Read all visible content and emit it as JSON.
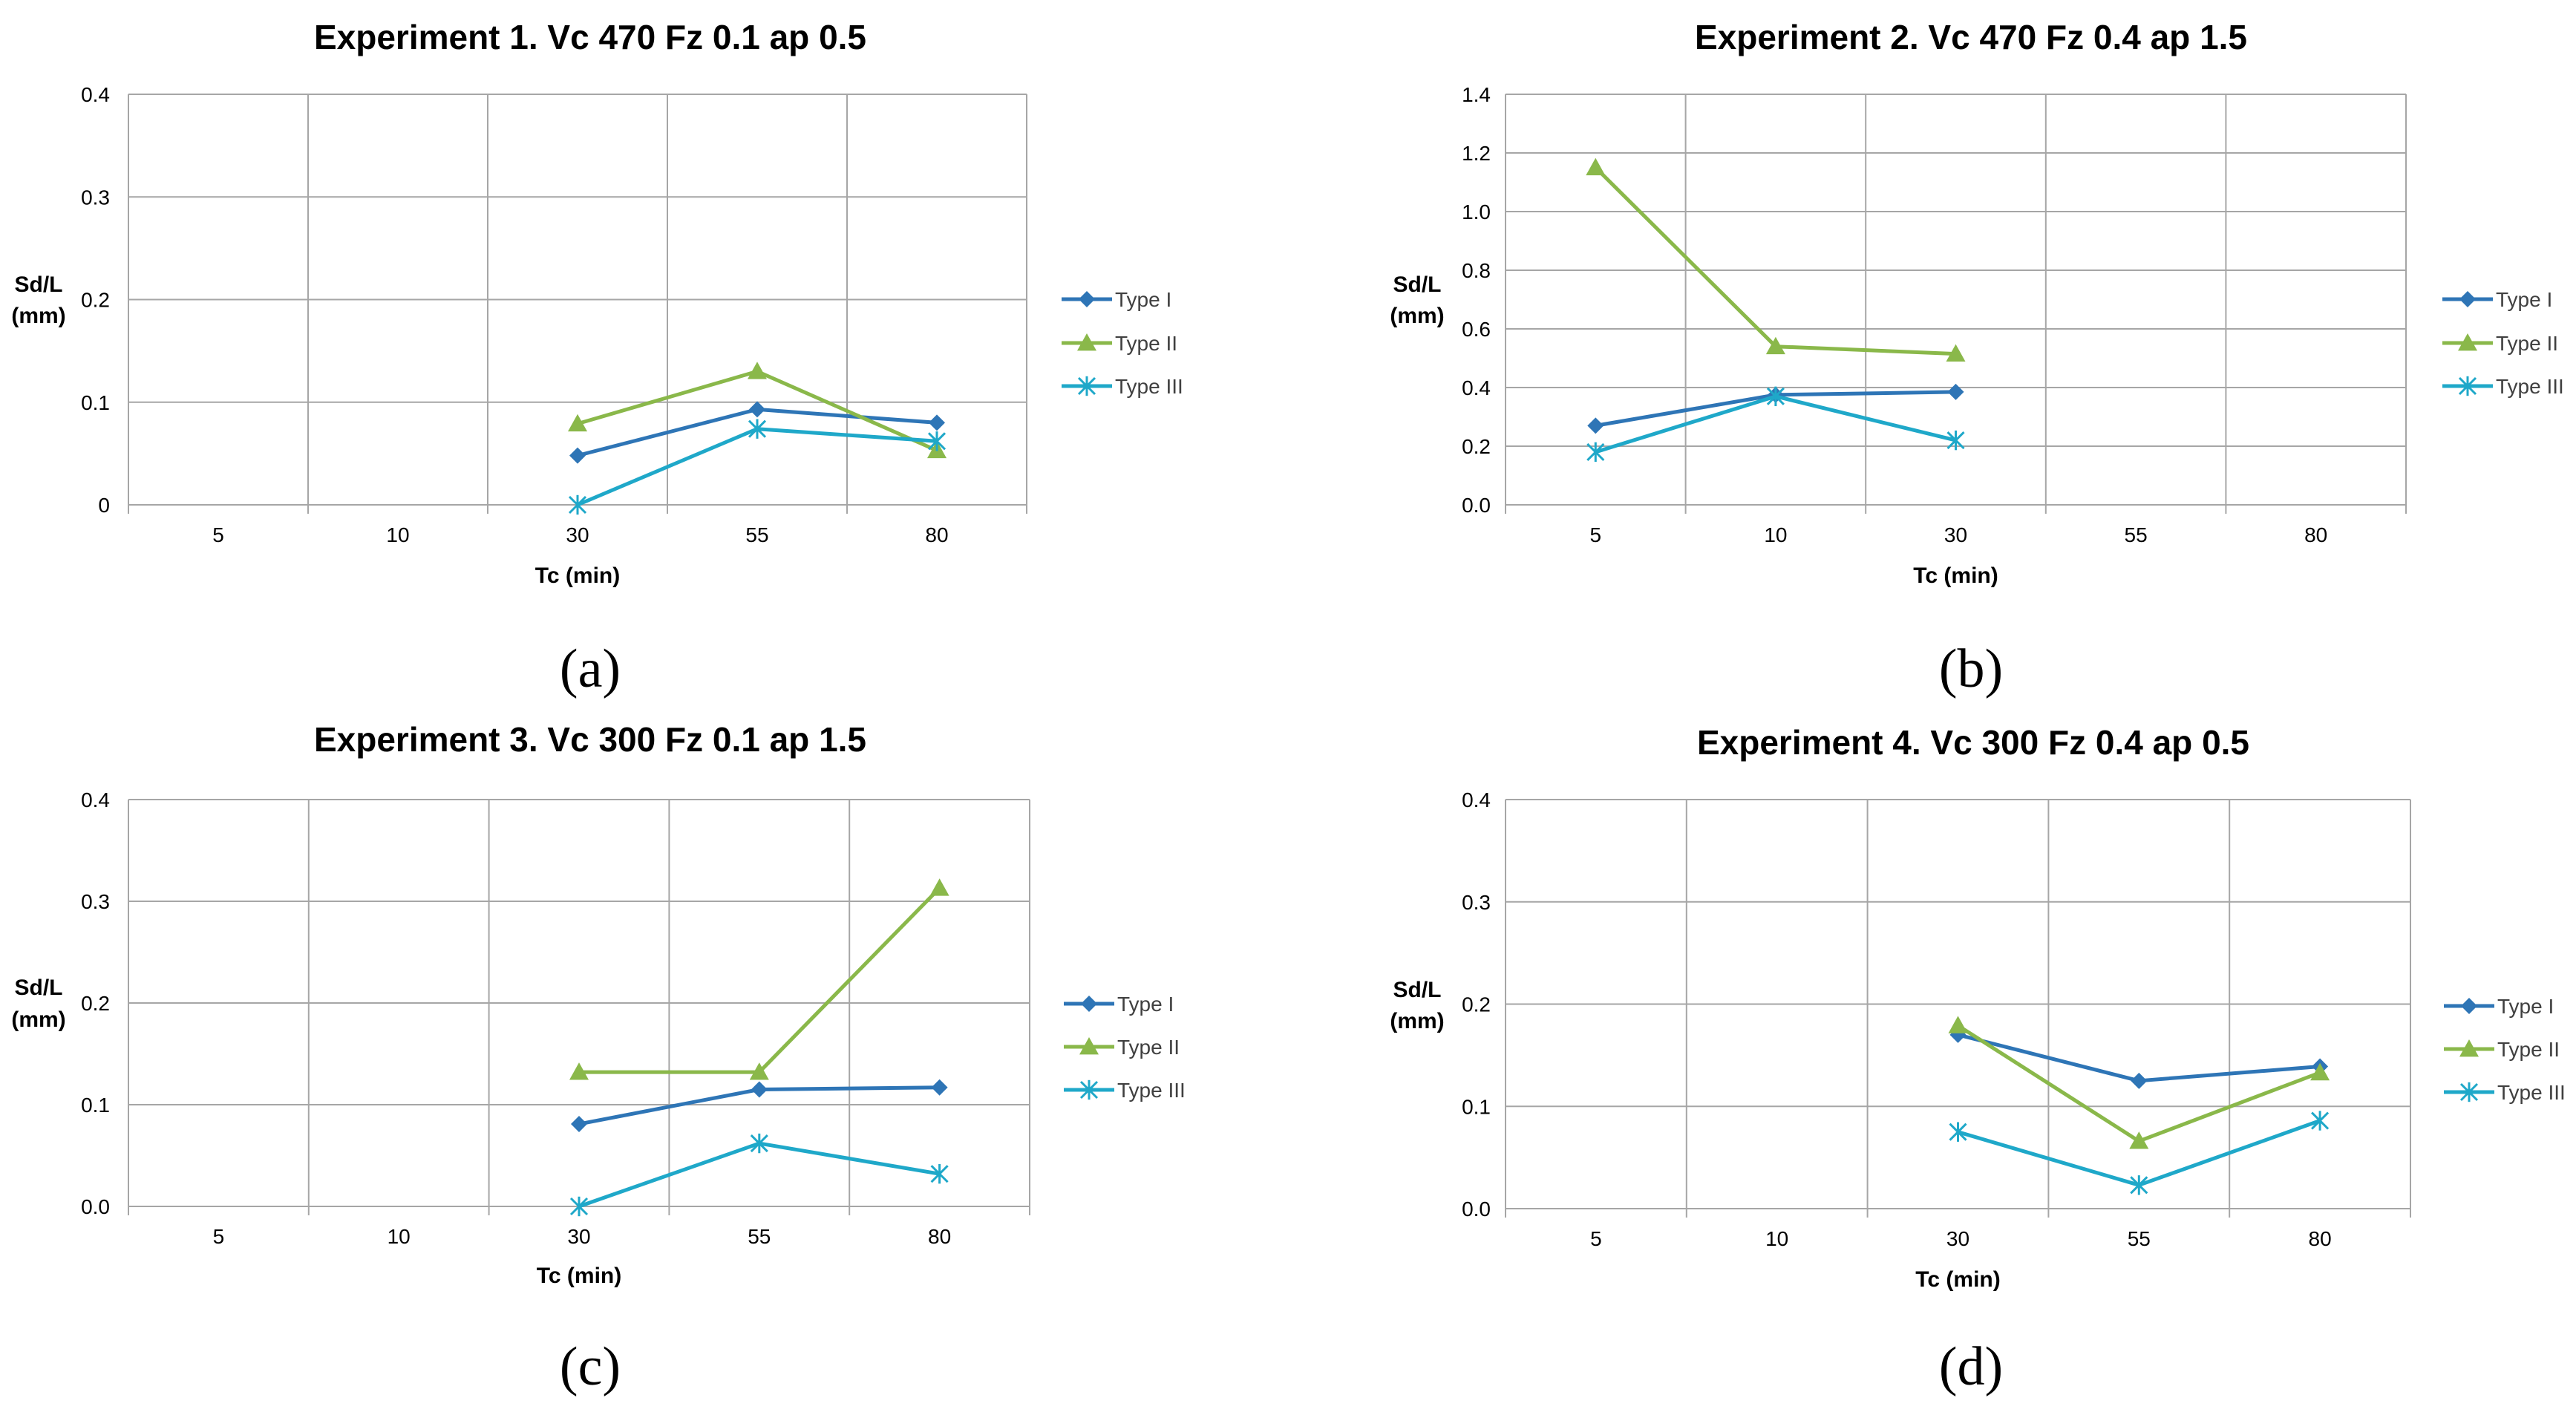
{
  "colors": {
    "type_i": "#2e75b6",
    "type_ii": "#8ab84a",
    "type_iii": "#1fa8c9",
    "grid": "#a6a6a6"
  },
  "chart_data": [
    {
      "type": "line",
      "panel_label": "(a)",
      "title": "Experiment 1. Vc 470 Fz 0.1 ap 0.5",
      "xlabel": "Tc (min)",
      "ylabel": [
        "Sd/L",
        "(mm)"
      ],
      "categories": [
        "5",
        "10",
        "30",
        "55",
        "80"
      ],
      "ylim": [
        0,
        0.4
      ],
      "yticks": [
        "0",
        "0.1",
        "0.2",
        "0.3",
        "0.4"
      ],
      "grid": true,
      "legend": "right",
      "series": [
        {
          "name": "Type I",
          "marker": "diamond",
          "values": [
            null,
            null,
            0.048,
            0.093,
            0.08
          ]
        },
        {
          "name": "Type II",
          "marker": "triangle",
          "values": [
            null,
            null,
            0.079,
            0.13,
            0.053
          ]
        },
        {
          "name": "Type III",
          "marker": "asterisk",
          "values": [
            null,
            null,
            0.0,
            0.074,
            0.062
          ]
        }
      ]
    },
    {
      "type": "line",
      "panel_label": "(b)",
      "title": "Experiment 2. Vc 470 Fz 0.4 ap 1.5",
      "xlabel": "Tc (min)",
      "ylabel": [
        "Sd/L",
        "(mm)"
      ],
      "categories": [
        "5",
        "10",
        "30",
        "55",
        "80"
      ],
      "ylim": [
        0,
        1.4
      ],
      "yticks": [
        "0.0",
        "0.2",
        "0.4",
        "0.6",
        "0.8",
        "1.0",
        "1.2",
        "1.4"
      ],
      "grid": true,
      "legend": "right",
      "series": [
        {
          "name": "Type I",
          "marker": "diamond",
          "values": [
            0.27,
            0.375,
            0.385,
            null,
            null
          ]
        },
        {
          "name": "Type II",
          "marker": "triangle",
          "values": [
            1.15,
            0.54,
            0.515,
            null,
            null
          ]
        },
        {
          "name": "Type III",
          "marker": "asterisk",
          "values": [
            0.18,
            0.37,
            0.22,
            null,
            null
          ]
        }
      ]
    },
    {
      "type": "line",
      "panel_label": "(c)",
      "title": "Experiment 3. Vc 300 Fz 0.1 ap 1.5",
      "xlabel": "Tc (min)",
      "ylabel": [
        "Sd/L",
        "(mm)"
      ],
      "categories": [
        "5",
        "10",
        "30",
        "55",
        "80"
      ],
      "ylim": [
        0,
        0.4
      ],
      "yticks": [
        "0.0",
        "0.1",
        "0.2",
        "0.3",
        "0.4"
      ],
      "grid": true,
      "legend": "right",
      "series": [
        {
          "name": "Type I",
          "marker": "diamond",
          "values": [
            null,
            null,
            0.081,
            0.115,
            0.117
          ]
        },
        {
          "name": "Type II",
          "marker": "triangle",
          "values": [
            null,
            null,
            0.132,
            0.132,
            0.313
          ]
        },
        {
          "name": "Type III",
          "marker": "asterisk",
          "values": [
            null,
            null,
            0.0,
            0.062,
            0.032
          ]
        }
      ]
    },
    {
      "type": "line",
      "panel_label": "(d)",
      "title": "Experiment 4. Vc 300 Fz 0.4 ap 0.5",
      "xlabel": "Tc (min)",
      "ylabel": [
        "Sd/L",
        "(mm)"
      ],
      "categories": [
        "5",
        "10",
        "30",
        "55",
        "80"
      ],
      "ylim": [
        0,
        0.4
      ],
      "yticks": [
        "0.0",
        "0.1",
        "0.2",
        "0.3",
        "0.4"
      ],
      "grid": true,
      "legend": "right",
      "series": [
        {
          "name": "Type I",
          "marker": "diamond",
          "values": [
            null,
            null,
            0.17,
            0.125,
            0.139
          ]
        },
        {
          "name": "Type II",
          "marker": "triangle",
          "values": [
            null,
            null,
            0.179,
            0.066,
            0.133
          ]
        },
        {
          "name": "Type III",
          "marker": "asterisk",
          "values": [
            null,
            null,
            0.075,
            0.023,
            0.086
          ]
        }
      ]
    }
  ]
}
